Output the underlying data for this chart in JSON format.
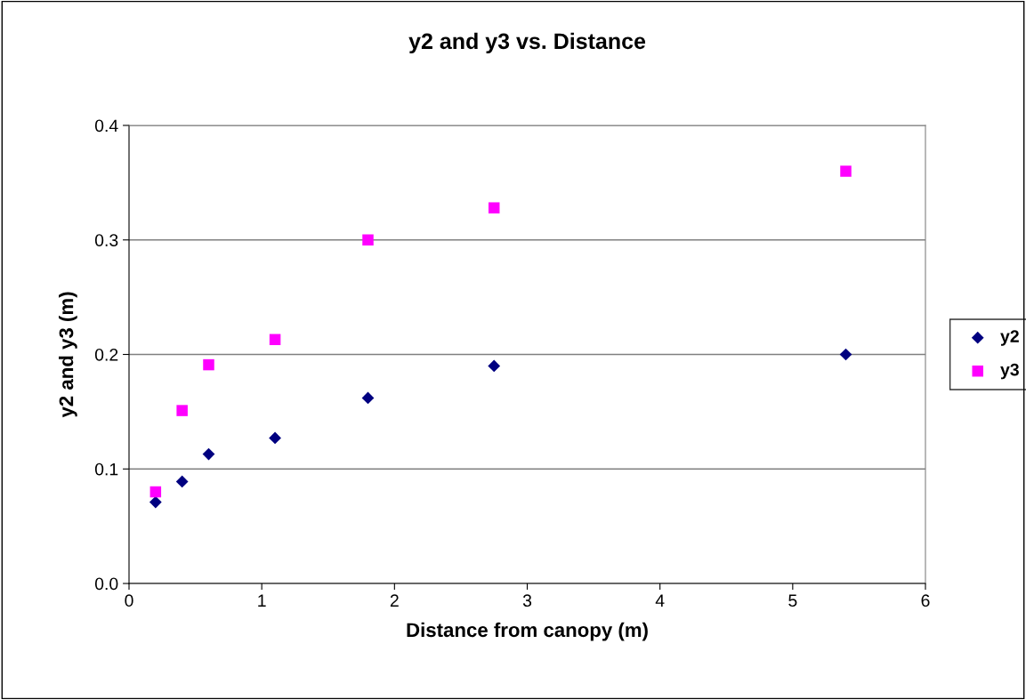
{
  "chart_data": {
    "type": "scatter",
    "title": "y2 and y3 vs. Distance",
    "xlabel": "Distance from canopy (m)",
    "ylabel": "y2 and y3 (m)",
    "x": [
      0.2,
      0.4,
      0.6,
      1.1,
      1.8,
      2.75,
      5.4
    ],
    "series": [
      {
        "name": "y2",
        "color": "#000080",
        "marker": "diamond",
        "values": [
          0.071,
          0.089,
          0.113,
          0.127,
          0.162,
          0.19,
          0.2
        ]
      },
      {
        "name": "y3",
        "color": "#ff00ff",
        "marker": "square",
        "values": [
          0.08,
          0.151,
          0.191,
          0.213,
          0.3,
          0.328,
          0.36
        ]
      }
    ],
    "xlim": [
      0,
      6
    ],
    "xticks": [
      0,
      1,
      2,
      3,
      4,
      5,
      6
    ],
    "ylim": [
      0,
      0.4
    ],
    "yticks": [
      {
        "value": 0,
        "label": "0.0"
      },
      {
        "value": 0.1,
        "label": "0.1"
      },
      {
        "value": 0.2,
        "label": "0.2"
      },
      {
        "value": 0.3,
        "label": "0.3"
      },
      {
        "value": 0.4,
        "label": "0.4"
      }
    ],
    "grid": "y",
    "legend": "right"
  }
}
